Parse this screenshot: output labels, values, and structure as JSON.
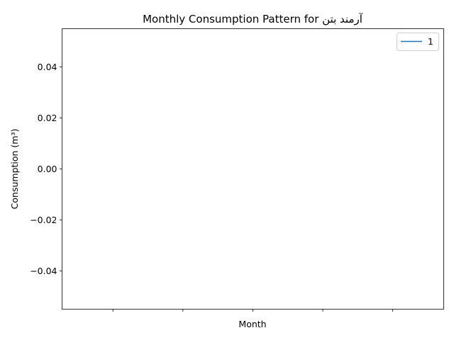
{
  "chart_data": {
    "type": "line",
    "title": "Monthly Consumption Pattern for  آرمند بتن",
    "xlabel": "Month",
    "ylabel": "Consumption (m³)",
    "ylim": [
      -0.055,
      0.055
    ],
    "y_ticks": [
      0.04,
      0.02,
      0.0,
      -0.02,
      -0.04
    ],
    "y_tick_labels": [
      "0.04",
      "0.02",
      "0.00",
      "−0.02",
      "−0.04"
    ],
    "x_tick_count": 5,
    "x_tick_labels": [
      "",
      "",
      "",
      "",
      ""
    ],
    "series": [
      {
        "name": "1",
        "values": [],
        "color": "#1f77b4"
      }
    ],
    "grid": false,
    "legend_position": "upper right"
  }
}
